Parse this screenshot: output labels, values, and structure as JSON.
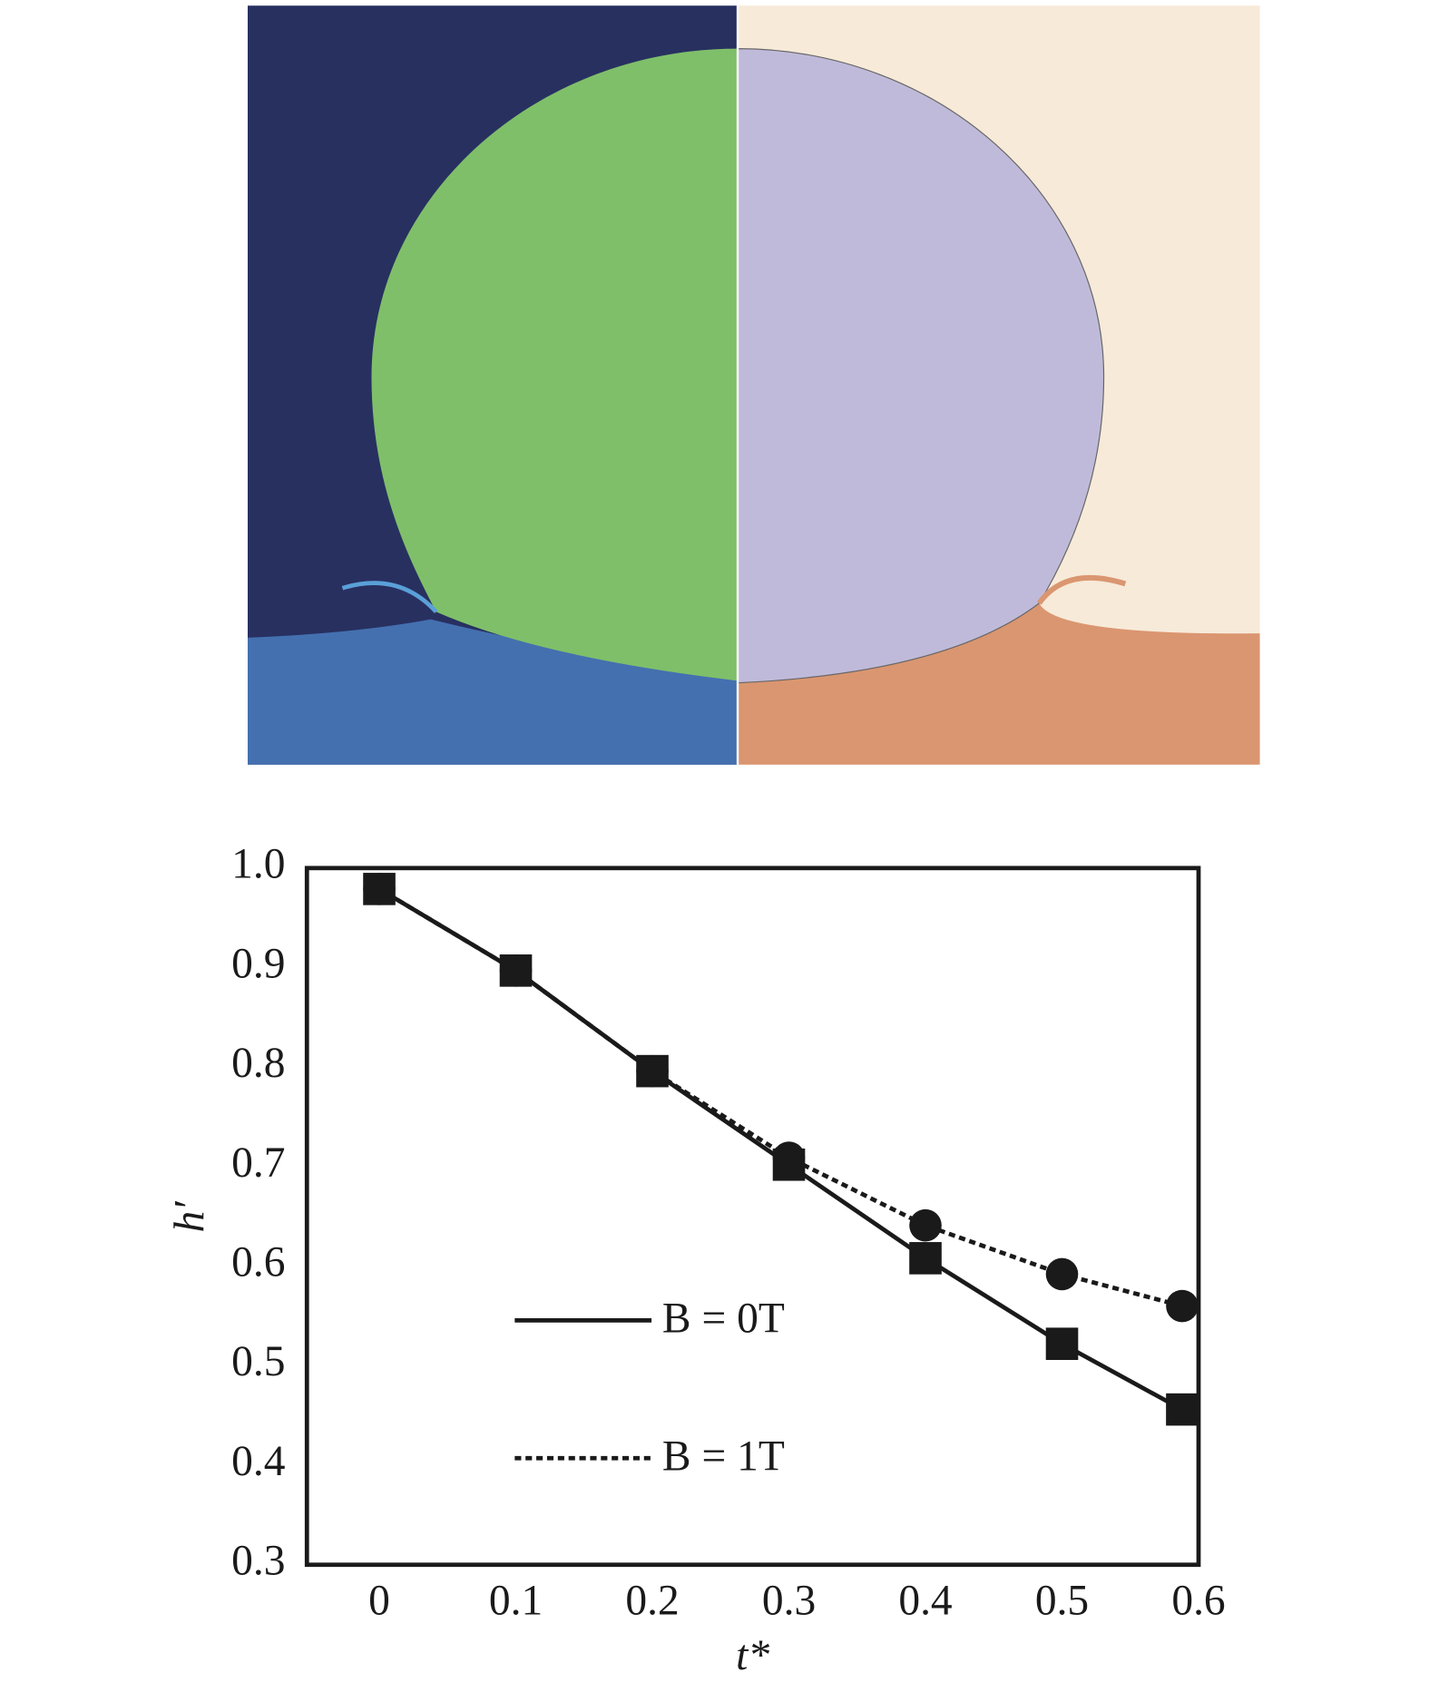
{
  "chart_data": {
    "type": "line",
    "x": [
      0,
      0.1,
      0.2,
      0.3,
      0.4,
      0.5,
      0.588
    ],
    "series": [
      {
        "name": "B = 1T",
        "color": "#1a1a1a",
        "line_style": "dotted",
        "marker": "circle",
        "values": [
          0.979,
          0.897,
          0.796,
          0.709,
          0.641,
          0.592,
          0.56
        ]
      },
      {
        "name": "B = 0T",
        "color": "#1a1a1a",
        "line_style": "solid",
        "marker": "square",
        "values": [
          0.979,
          0.897,
          0.796,
          0.702,
          0.608,
          0.522,
          0.456
        ]
      }
    ],
    "xlabel": "t*",
    "ylabel": "h′",
    "xlim": [
      -0.053,
      0.6
    ],
    "ylim": [
      0.3,
      1.0
    ],
    "xticks": [
      0,
      0.1,
      0.2,
      0.3,
      0.4,
      0.5,
      0.6
    ],
    "yticks": [
      {
        "value": 0.3,
        "label": "0.3"
      },
      0.4,
      0.5,
      0.6,
      0.7,
      0.8,
      0.9,
      {
        "value": 1.0,
        "label": "1.0"
      }
    ]
  }
}
